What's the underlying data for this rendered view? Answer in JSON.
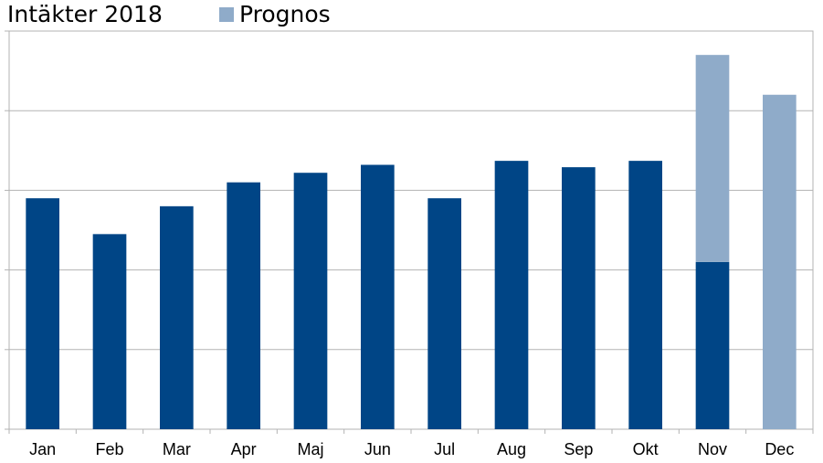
{
  "chart_data": {
    "type": "bar",
    "title": "Intäkter 2018",
    "categories": [
      "Jan",
      "Feb",
      "Mar",
      "Apr",
      "Maj",
      "Jun",
      "Jul",
      "Aug",
      "Sep",
      "Okt",
      "Nov",
      "Dec"
    ],
    "series": [
      {
        "values": [
          29,
          24.5,
          28,
          31,
          32.2,
          33.2,
          29,
          33.7,
          32.9,
          33.7,
          21,
          0
        ]
      },
      {
        "name": "Prognos",
        "values": [
          0,
          0,
          0,
          0,
          0,
          0,
          0,
          0,
          0,
          0,
          26,
          42
        ]
      }
    ],
    "stacked": true,
    "ylim": [
      0,
      50
    ],
    "y_gridlines": [
      10,
      20,
      30,
      40
    ],
    "y_tick_labels_shown": false,
    "grid": true,
    "legend": "top",
    "colors": {
      "actual": "#004586",
      "forecast": "#8fabc9",
      "grid": "#b3b3b3"
    }
  }
}
